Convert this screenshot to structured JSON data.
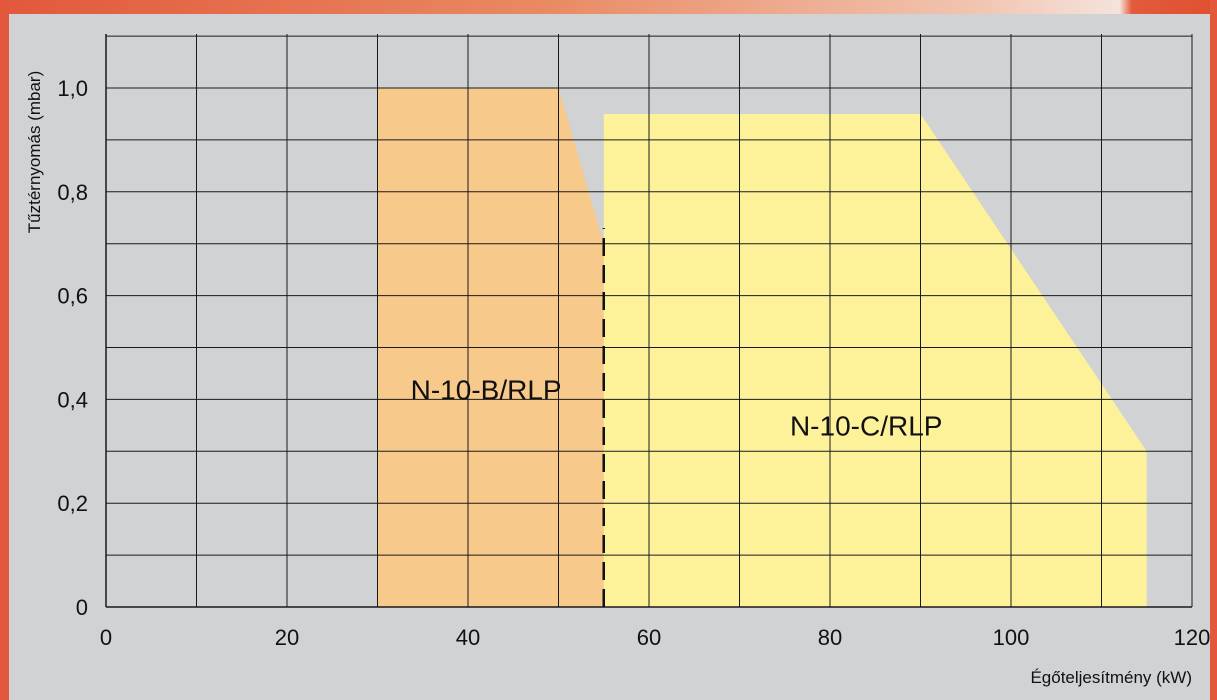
{
  "colors": {
    "background": "#d0d2d3",
    "frame_accent": "#e2583c",
    "grid": "#1a1a1a",
    "series_b": "#f7c98a",
    "series_c": "#fdf29a",
    "divider": "#111111"
  },
  "chart_data": {
    "type": "area",
    "xlabel": "Égőteljesítmény (kW)",
    "ylabel": "Tűztérnyomás (mbar)",
    "xlim": [
      0,
      120
    ],
    "ylim": [
      0,
      1.0
    ],
    "x_ticks": [
      {
        "value": 0,
        "label": "0"
      },
      {
        "value": 20,
        "label": "20"
      },
      {
        "value": 40,
        "label": "40"
      },
      {
        "value": 60,
        "label": "60"
      },
      {
        "value": 80,
        "label": "80"
      },
      {
        "value": 100,
        "label": "100"
      },
      {
        "value": 120,
        "label": "120"
      }
    ],
    "y_ticks": [
      {
        "value": 0,
        "label": "0"
      },
      {
        "value": 0.2,
        "label": "0,2"
      },
      {
        "value": 0.4,
        "label": "0,4"
      },
      {
        "value": 0.6,
        "label": "0,6"
      },
      {
        "value": 0.8,
        "label": "0,8"
      },
      {
        "value": 1.0,
        "label": "1,0"
      }
    ],
    "grid": true,
    "series": [
      {
        "name": "N-10-B/RLP",
        "color": "#f7c98a",
        "polygon": [
          [
            30,
            0
          ],
          [
            30,
            1.0
          ],
          [
            50,
            1.0
          ],
          [
            60,
            0.4
          ],
          [
            60,
            0
          ]
        ],
        "label_at": [
          42,
          0.4
        ]
      },
      {
        "name": "N-10-C/RLP",
        "color": "#fdf29a",
        "polygon": [
          [
            55,
            0
          ],
          [
            55,
            0.95
          ],
          [
            90,
            0.95
          ],
          [
            115,
            0.3
          ],
          [
            115,
            0
          ]
        ],
        "label_at": [
          84,
          0.33
        ]
      }
    ],
    "divider": {
      "x": 55,
      "y_from": 0,
      "y_to": 0.73,
      "style": "dashed"
    }
  }
}
